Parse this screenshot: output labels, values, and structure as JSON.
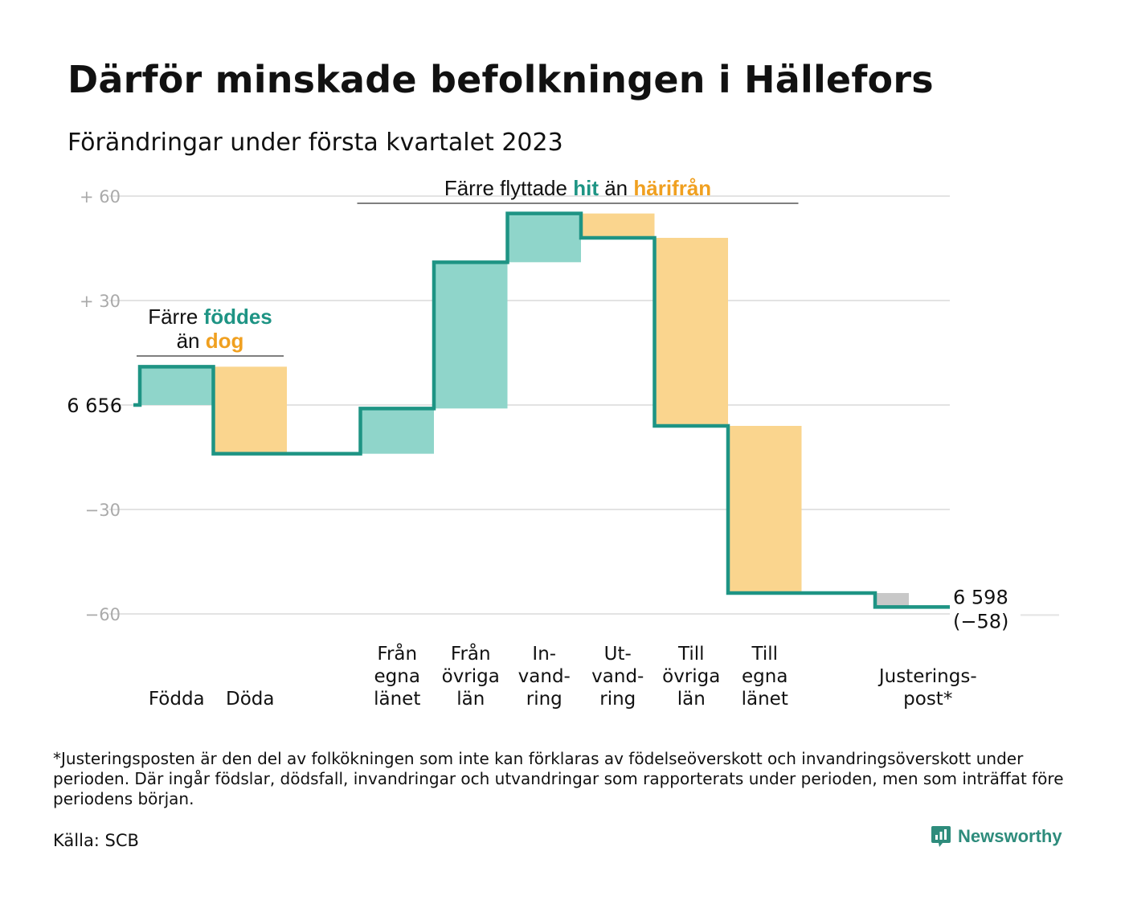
{
  "title": "Därför minskade befolkningen i Hällefors",
  "subtitle": "Förändringar under första kvartalet 2023",
  "footnote": "*Justeringsposten är den del av folkökningen som inte kan förklaras av födelseöverskott och invandringsöverskott under perioden. Där ingår födslar, dödsfall, invandringar och utvandringar som rapporterats under perioden, men som inträffat före periodens början.",
  "source": "Källa: SCB",
  "brand": "Newsworthy",
  "colors": {
    "increase": "#8fd5ca",
    "decrease": "#fad58e",
    "adjustment": "#c8c8c8",
    "line": "#1e9484",
    "teal_text": "#1e9484",
    "orange_text": "#f0a020",
    "grid": "#e3e3e3",
    "tick": "#aaaaaa"
  },
  "chart_data": {
    "type": "waterfall",
    "start_value": 6656,
    "end_value": 6598,
    "start_label": "6 656",
    "end_label": "6 598",
    "end_change_label": "(−58)",
    "ylim": [
      -60,
      60
    ],
    "yticks": [
      {
        "value": 60,
        "label": "+ 60"
      },
      {
        "value": 30,
        "label": "+ 30"
      },
      {
        "value": 0,
        "label": ""
      },
      {
        "value": -30,
        "label": "−30"
      },
      {
        "value": -60,
        "label": "−60"
      }
    ],
    "steps": [
      {
        "label": [
          "Födda"
        ],
        "change": 11,
        "kind": "increase"
      },
      {
        "label": [
          "Döda"
        ],
        "change": -25,
        "kind": "decrease"
      },
      {
        "label": [],
        "change": 0,
        "kind": "gap"
      },
      {
        "label": [
          "Från",
          "egna",
          "länet"
        ],
        "change": 13,
        "kind": "increase"
      },
      {
        "label": [
          "Från",
          "övriga",
          "län"
        ],
        "change": 42,
        "kind": "increase"
      },
      {
        "label": [
          "In-",
          "vand-",
          "ring"
        ],
        "change": 14,
        "kind": "increase"
      },
      {
        "label": [
          "Ut-",
          "vand-",
          "ring"
        ],
        "change": -7,
        "kind": "decrease"
      },
      {
        "label": [
          "Till",
          "övriga",
          "län"
        ],
        "change": -54,
        "kind": "decrease"
      },
      {
        "label": [
          "Till",
          "egna",
          "länet"
        ],
        "change": -48,
        "kind": "decrease"
      },
      {
        "label": [],
        "change": 0,
        "kind": "gap"
      },
      {
        "label": [
          "Justerings-",
          "post*"
        ],
        "change": -4,
        "kind": "adjustment"
      }
    ],
    "annotations": [
      {
        "lines": [
          [
            {
              "text": "Färre ",
              "color": "dark"
            },
            {
              "text": "föddes",
              "color": "teal"
            }
          ],
          [
            {
              "text": "än ",
              "color": "dark"
            },
            {
              "text": "dog",
              "color": "orange"
            }
          ]
        ],
        "from_step": 0,
        "to_step": 1
      },
      {
        "lines": [
          [
            {
              "text": "Färre flyttade ",
              "color": "dark"
            },
            {
              "text": "hit",
              "color": "teal"
            },
            {
              "text": " än ",
              "color": "dark"
            },
            {
              "text": "härifrån",
              "color": "orange"
            }
          ]
        ],
        "from_step": 3,
        "to_step": 8
      }
    ]
  }
}
